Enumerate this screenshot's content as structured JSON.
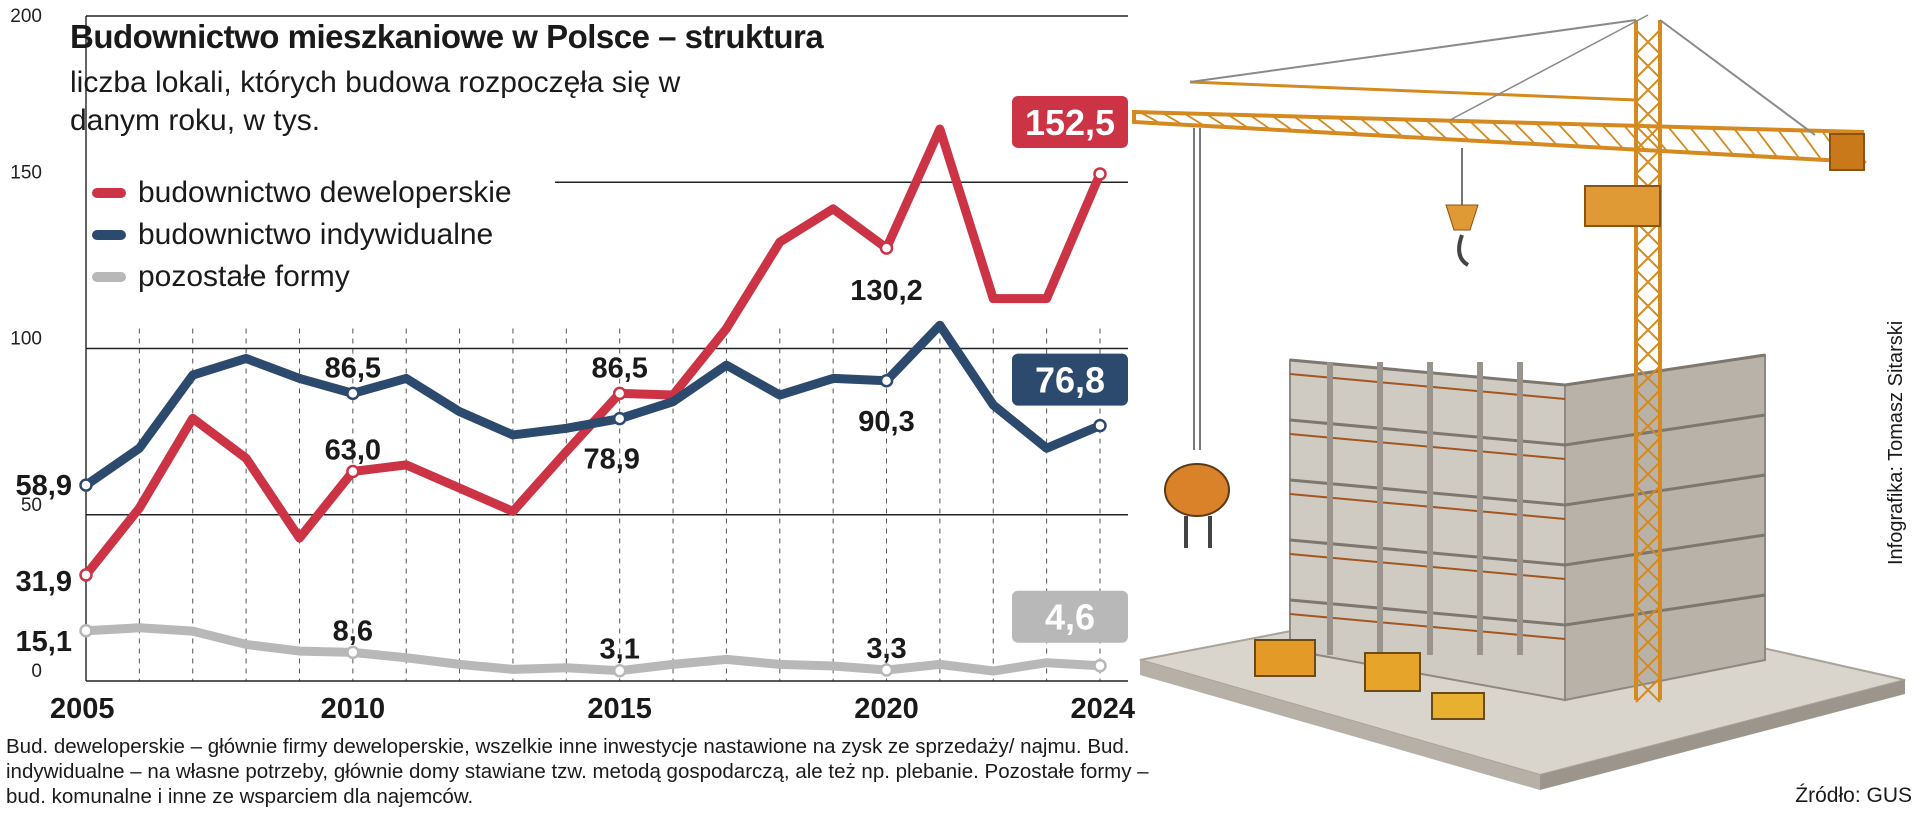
{
  "chart_data": {
    "type": "line",
    "title": "Budownictwo mieszkaniowe w Polsce – struktura",
    "subtitle": "liczba lokali, których budowa rozpoczęła się w danym roku, w tys.",
    "x": [
      2005,
      2006,
      2007,
      2008,
      2009,
      2010,
      2011,
      2012,
      2013,
      2014,
      2015,
      2016,
      2017,
      2018,
      2019,
      2020,
      2021,
      2022,
      2023,
      2024
    ],
    "xticks": [
      "2005",
      "2010",
      "2015",
      "2020",
      "2024"
    ],
    "yticks": [
      "0",
      "50",
      "100",
      "150",
      "200"
    ],
    "ylim": [
      0,
      200
    ],
    "grid": "horizontal solid at 0/50/100/150/200, vertical dashed per year",
    "legend_position": "top-left",
    "series": [
      {
        "name": "budownictwo deweloperskie",
        "color": "#cc3345",
        "values": [
          31.9,
          52,
          79,
          67,
          43,
          63.0,
          65,
          58,
          51,
          69,
          86.5,
          86,
          106,
          132,
          142,
          130.2,
          166,
          115,
          115,
          152.5
        ]
      },
      {
        "name": "budownictwo indywidualne",
        "color": "#2b4a6d",
        "values": [
          58.9,
          70,
          92,
          97,
          91,
          86.5,
          91,
          81,
          74,
          76,
          78.9,
          84,
          95,
          86,
          91,
          90.3,
          107,
          83,
          70,
          76.8
        ]
      },
      {
        "name": "pozostałe formy",
        "color": "#b8b8b8",
        "values": [
          15.1,
          16,
          15,
          11,
          9,
          8.6,
          7,
          5,
          3.5,
          4,
          3.1,
          5,
          6.5,
          5,
          4.5,
          3.3,
          5,
          3,
          5.5,
          4.6
        ]
      }
    ],
    "labels": [
      {
        "series": 0,
        "index": 0,
        "text": "31,9"
      },
      {
        "series": 0,
        "index": 5,
        "text": "63,0"
      },
      {
        "series": 0,
        "index": 10,
        "text": "86,5"
      },
      {
        "series": 0,
        "index": 15,
        "text": "130,2"
      },
      {
        "series": 0,
        "index": 19,
        "text": "152,5",
        "boxed": true
      },
      {
        "series": 1,
        "index": 0,
        "text": "58,9"
      },
      {
        "series": 1,
        "index": 5,
        "text": "86,5"
      },
      {
        "series": 1,
        "index": 10,
        "text": "78,9"
      },
      {
        "series": 1,
        "index": 15,
        "text": "90,3"
      },
      {
        "series": 1,
        "index": 19,
        "text": "76,8",
        "boxed": true
      },
      {
        "series": 2,
        "index": 0,
        "text": "15,1"
      },
      {
        "series": 2,
        "index": 5,
        "text": "8,6"
      },
      {
        "series": 2,
        "index": 10,
        "text": "3,1"
      },
      {
        "series": 2,
        "index": 15,
        "text": "3,3"
      },
      {
        "series": 2,
        "index": 19,
        "text": "4,6",
        "boxed": true
      }
    ]
  },
  "footnote": "Bud. deweloperskie – głównie firmy deweloperskie, wszelkie inne inwestycje nastawione na zysk ze sprzedaży/ najmu. Bud. indywidualne – na własne potrzeby, głównie domy stawiane tzw. metodą gospodarczą, ale też np. plebanie. Pozostałe formy – bud. komunalne i inne ze wsparciem dla najemców.",
  "source": "Źródło: GUS",
  "credit": "Infografika: Tomasz Sitarski",
  "illustration": "construction-crane-building-illustration"
}
